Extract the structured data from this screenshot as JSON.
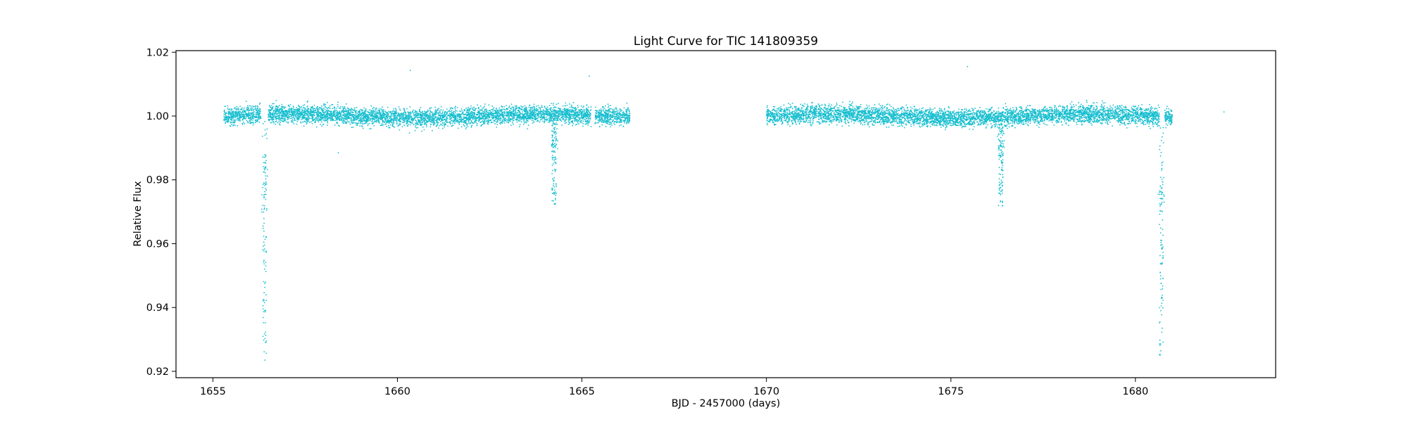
{
  "chart_data": {
    "type": "scatter",
    "title": "Light Curve for TIC 141809359",
    "xlabel": "BJD - 2457000 (days)",
    "ylabel": "Relative Flux",
    "xlim": [
      1654.0,
      1683.8
    ],
    "ylim": [
      0.918,
      1.0205
    ],
    "xticks": [
      1655,
      1660,
      1665,
      1670,
      1675,
      1680
    ],
    "yticks": [
      0.92,
      0.94,
      0.96,
      0.98,
      1.0,
      1.02
    ],
    "ytick_labels": [
      "0.92",
      "0.94",
      "0.96",
      "0.98",
      "1.00",
      "1.02"
    ],
    "grid": false,
    "marker_color": "#17becf",
    "segments": [
      {
        "x_range": [
          1655.3,
          1666.3
        ],
        "baseline": 1.0,
        "scatter": 0.0025
      },
      {
        "x_range": [
          1670.0,
          1681.0
        ],
        "baseline": 1.0,
        "scatter": 0.0025
      }
    ],
    "gaps": [
      {
        "x_range": [
          1656.3,
          1656.5
        ]
      },
      {
        "x_range": [
          1665.25,
          1665.35
        ]
      },
      {
        "x_range": [
          1680.65,
          1680.8
        ]
      }
    ],
    "transits": [
      {
        "center": 1656.4,
        "min_flux": 0.923,
        "width_days": 0.1
      },
      {
        "center": 1664.25,
        "min_flux": 0.972,
        "width_days": 0.12
      },
      {
        "center": 1676.35,
        "min_flux": 0.971,
        "width_days": 0.12
      },
      {
        "center": 1680.7,
        "min_flux": 0.925,
        "width_days": 0.1
      }
    ],
    "outliers": [
      {
        "x": 1660.35,
        "y": 1.0143
      },
      {
        "x": 1665.2,
        "y": 1.0125
      },
      {
        "x": 1675.45,
        "y": 1.0155
      },
      {
        "x": 1682.4,
        "y": 1.0013
      },
      {
        "x": 1658.4,
        "y": 0.9885
      }
    ]
  }
}
